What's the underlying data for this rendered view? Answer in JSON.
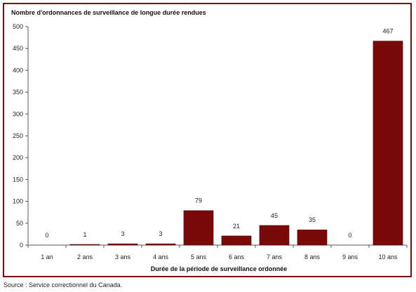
{
  "chart_data": {
    "type": "bar",
    "ylabel": "Nombre d'ordonnances de surveillance de longue durée rendues",
    "xlabel": "Durée de la période de surveillance ordonnée",
    "categories": [
      "1 an",
      "2 ans",
      "3 ans",
      "4 ans",
      "5 ans",
      "6 ans",
      "7 ans",
      "8 ans",
      "9 ans",
      "10 ans"
    ],
    "values": [
      0,
      1,
      3,
      3,
      79,
      21,
      45,
      35,
      0,
      467
    ],
    "data_labels": [
      "0",
      "1",
      "3",
      "3",
      "79",
      "21",
      "45",
      "35",
      "0",
      "467"
    ],
    "ylim": [
      0,
      500
    ],
    "yticks": [
      0,
      50,
      100,
      150,
      200,
      250,
      300,
      350,
      400,
      450,
      500
    ],
    "grid": false,
    "bar_color": "#7a0a0a",
    "frame_color": "#7a0f0f"
  },
  "source": "Source : Service correctionnel du Canada."
}
